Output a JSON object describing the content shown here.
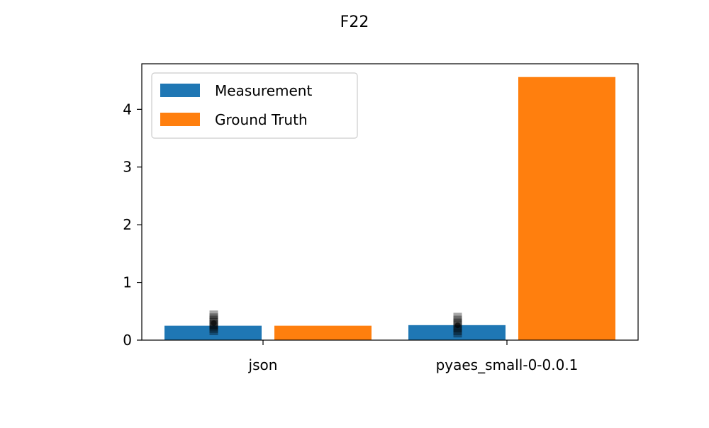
{
  "chart_data": {
    "type": "bar",
    "title": "F22",
    "xlabel": "",
    "ylabel": "",
    "categories": [
      "json",
      "pyaes_small-0-0.0.1"
    ],
    "series": [
      {
        "name": "Measurement",
        "values": [
          0.25,
          0.26
        ],
        "color": "#1f77b4"
      },
      {
        "name": "Ground Truth",
        "values": [
          0.25,
          4.56
        ],
        "color": "#ff7f0e"
      }
    ],
    "error_markers": [
      {
        "category": "json",
        "values": [
          0.16,
          0.2,
          0.24,
          0.27,
          0.31,
          0.35,
          0.39,
          0.44
        ]
      },
      {
        "category": "pyaes_small-0-0.0.1",
        "values": [
          0.12,
          0.16,
          0.21,
          0.26,
          0.3,
          0.35,
          0.4
        ]
      }
    ],
    "ylim": [
      0,
      4.79
    ],
    "yticks": [
      0,
      1,
      2,
      3,
      4
    ],
    "grid": false,
    "legend_position": "upper-left"
  }
}
